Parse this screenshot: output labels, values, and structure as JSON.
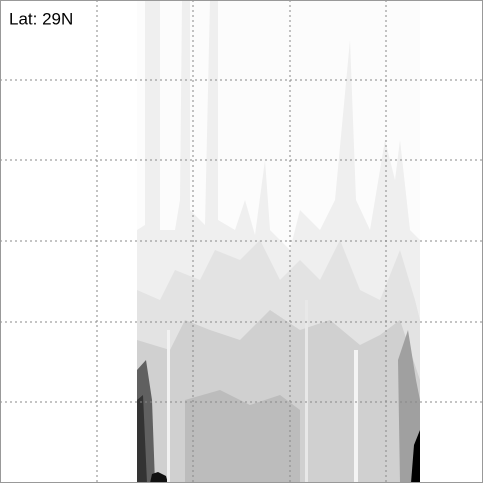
{
  "label": "Lat: 29N"
}
